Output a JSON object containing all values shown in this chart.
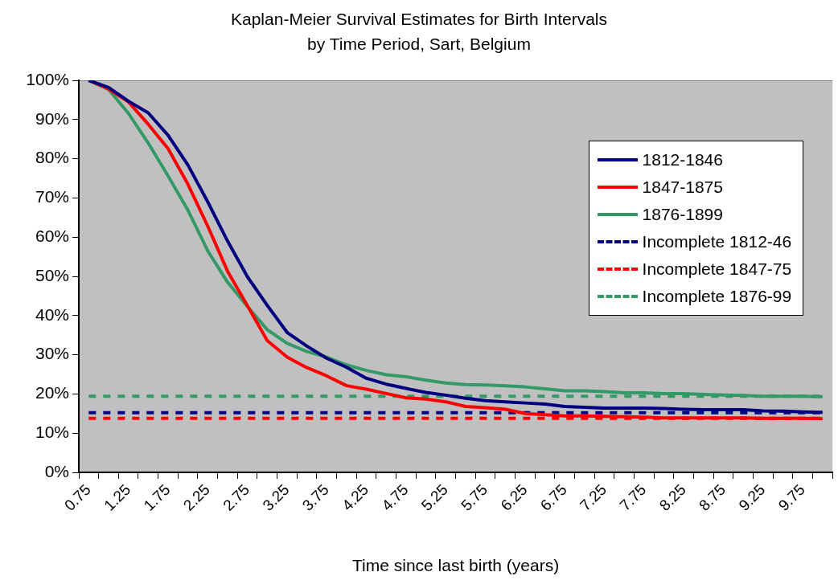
{
  "chart_data": {
    "type": "line",
    "title": "Kaplan-Meier Survival Estimates for Birth Intervals by Time Period, Sart, Belgium",
    "xlabel": "Time since last birth (years)",
    "categories": [
      "0.75",
      null,
      "1.25",
      null,
      "1.75",
      null,
      "2.25",
      null,
      "2.75",
      null,
      "3.25",
      null,
      "3.75",
      null,
      "4.25",
      null,
      "4.75",
      null,
      "5.25",
      null,
      "5.75",
      null,
      "6.25",
      null,
      "6.75",
      null,
      "7.25",
      null,
      "7.75",
      null,
      "8.25",
      null,
      "8.75",
      null,
      "9.25",
      null,
      "9.75",
      null
    ],
    "series": [
      {
        "name": "1812-1846",
        "color": "#000080",
        "values": [
          100,
          98.2,
          94.7,
          91.7,
          86.0,
          78.4,
          69.0,
          59.0,
          49.9,
          42.6,
          35.7,
          32.2,
          29.1,
          26.8,
          24.0,
          22.5,
          21.4,
          20.4,
          19.7,
          18.9,
          18.3,
          18.0,
          17.7,
          17.4,
          16.8,
          16.6,
          16.4,
          16.4,
          16.4,
          16.3,
          16.1,
          16.0,
          16.0,
          16.0,
          15.7,
          15.6,
          15.4,
          15.3
        ]
      },
      {
        "name": "1847-1875",
        "color": "#ff0000",
        "values": [
          100,
          97.8,
          94.5,
          88.8,
          82.6,
          73.5,
          62.8,
          51.3,
          42.5,
          33.6,
          29.4,
          26.7,
          24.6,
          22.1,
          21.2,
          20.1,
          19.0,
          18.7,
          18.0,
          16.8,
          16.5,
          16.1,
          15.0,
          14.7,
          14.4,
          14.4,
          14.3,
          14.2,
          14.1,
          13.9,
          13.9,
          13.9,
          13.9,
          13.9,
          13.8,
          13.8,
          13.8,
          13.7
        ]
      },
      {
        "name": "1876-1899",
        "color": "#339966",
        "values": [
          100,
          97.7,
          91.6,
          84.0,
          75.6,
          66.9,
          56.5,
          48.5,
          42.3,
          36.4,
          32.9,
          30.8,
          29.4,
          27.4,
          26.0,
          24.9,
          24.4,
          23.5,
          22.8,
          22.4,
          22.3,
          22.1,
          21.8,
          21.3,
          20.8,
          20.8,
          20.6,
          20.3,
          20.3,
          20.1,
          20.1,
          19.9,
          19.7,
          19.6,
          19.4,
          19.4,
          19.4,
          19.3
        ]
      },
      {
        "name": "Incomplete 1812-46",
        "color": "#000080",
        "line_style": "dotted",
        "values": [
          15.2,
          15.2,
          15.2,
          15.2,
          15.2,
          15.2,
          15.2,
          15.2,
          15.2,
          15.2,
          15.2,
          15.2,
          15.2,
          15.2,
          15.2,
          15.2,
          15.2,
          15.2,
          15.2,
          15.2,
          15.2,
          15.2,
          15.2,
          15.2,
          15.2,
          15.2,
          15.2,
          15.2,
          15.2,
          15.2,
          15.2,
          15.2,
          15.2,
          15.2,
          15.2,
          15.2,
          15.2,
          15.2
        ]
      },
      {
        "name": "Incomplete 1847-75",
        "color": "#ff0000",
        "line_style": "dotted",
        "values": [
          13.8,
          13.8,
          13.8,
          13.8,
          13.8,
          13.8,
          13.8,
          13.8,
          13.8,
          13.8,
          13.8,
          13.8,
          13.8,
          13.8,
          13.8,
          13.8,
          13.8,
          13.8,
          13.8,
          13.8,
          13.8,
          13.8,
          13.8,
          13.8,
          13.8,
          13.8,
          13.8,
          13.8,
          13.8,
          13.8,
          13.8,
          13.8,
          13.8,
          13.8,
          13.8,
          13.8,
          13.8,
          13.8
        ]
      },
      {
        "name": "Incomplete 1876-99",
        "color": "#339966",
        "line_style": "dotted",
        "values": [
          19.4,
          19.4,
          19.4,
          19.4,
          19.4,
          19.4,
          19.4,
          19.4,
          19.4,
          19.4,
          19.4,
          19.4,
          19.4,
          19.4,
          19.4,
          19.4,
          19.4,
          19.4,
          19.4,
          19.4,
          19.4,
          19.4,
          19.4,
          19.4,
          19.4,
          19.4,
          19.4,
          19.4,
          19.4,
          19.4,
          19.4,
          19.4,
          19.4,
          19.4,
          19.4,
          19.4,
          19.4,
          19.4
        ]
      }
    ],
    "ylim": [
      0,
      100
    ],
    "yticks": [
      {
        "value": 0,
        "label": "0%"
      },
      {
        "value": 10,
        "label": "10%"
      },
      {
        "value": 20,
        "label": "20%"
      },
      {
        "value": 30,
        "label": "30%"
      },
      {
        "value": 40,
        "label": "40%"
      },
      {
        "value": 50,
        "label": "50%"
      },
      {
        "value": 60,
        "label": "60%"
      },
      {
        "value": 70,
        "label": "70%"
      },
      {
        "value": 80,
        "label": "80%"
      },
      {
        "value": 90,
        "label": "90%"
      },
      {
        "value": 100,
        "label": "100%"
      }
    ],
    "grid": false,
    "legend": "top right",
    "marker": "none",
    "line_style": "solid"
  }
}
